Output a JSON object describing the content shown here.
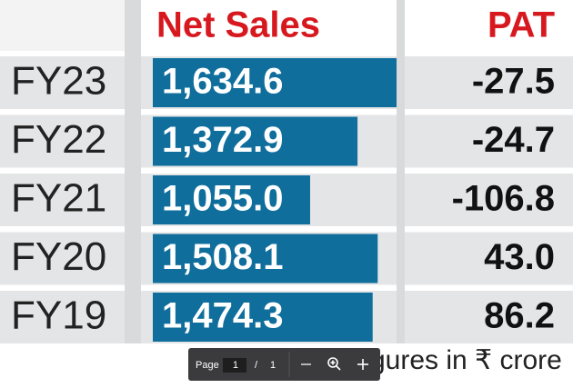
{
  "chart_data": {
    "type": "bar",
    "categories": [
      "FY23",
      "FY22",
      "FY21",
      "FY20",
      "FY19"
    ],
    "series": [
      {
        "name": "Net Sales",
        "color": "#0f6e9c",
        "values": [
          1634.6,
          1372.9,
          1055.0,
          1508.1,
          1474.3
        ],
        "value_labels": [
          "1,634.6",
          "1,372.9",
          "1,055.0",
          "1,508.1",
          "1,474.3"
        ]
      },
      {
        "name": "PAT",
        "values": [
          -27.5,
          -24.7,
          -106.8,
          43.0,
          86.2
        ],
        "value_labels": [
          "-27.5",
          "-24.7",
          "-106.8",
          "43.0",
          "86.2"
        ]
      }
    ],
    "xlim": [
      0,
      1634.6
    ],
    "note": "Figures in ₹ crore"
  },
  "viewer_toolbar": {
    "page_label": "Page",
    "current_page": "1",
    "separator": "/",
    "total_pages": "1"
  }
}
